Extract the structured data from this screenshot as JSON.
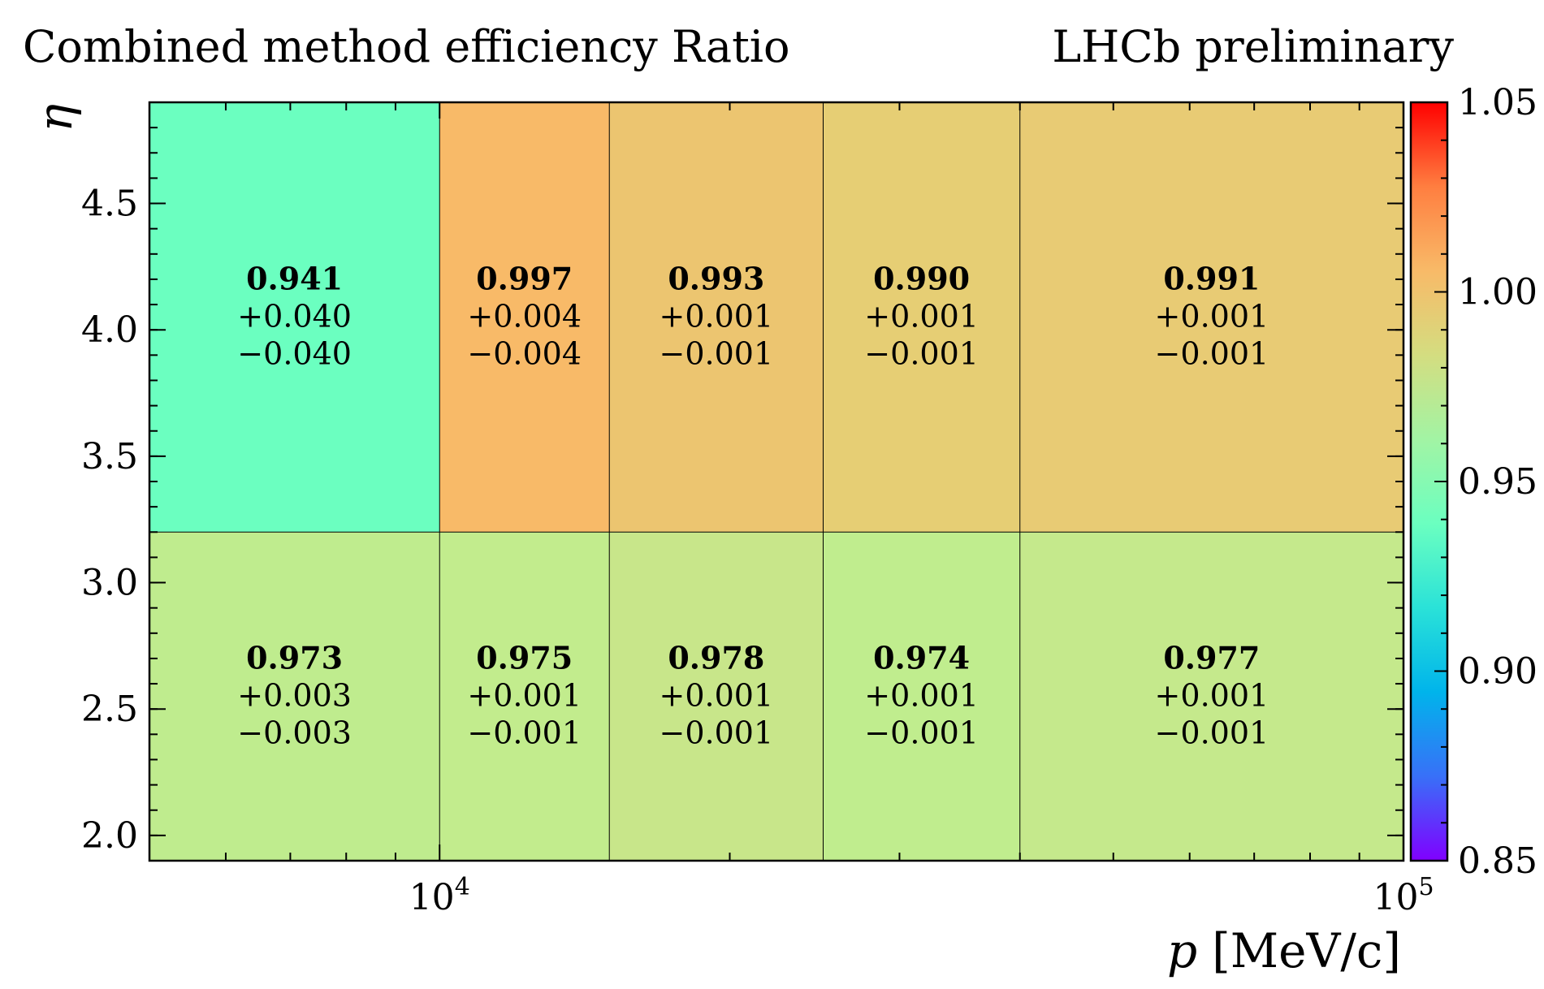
{
  "chart_data": {
    "type": "heatmap",
    "title": "Combined method efficiency Ratio",
    "experiment_label": "LHCb preliminary",
    "xlabel_symbol": "p",
    "xlabel_unit": "[MeV/c]",
    "ylabel_symbol": "η",
    "x_scale": "log",
    "xlim": [
      5000,
      100000
    ],
    "ylim": [
      1.9,
      4.9
    ],
    "x_bin_edges": [
      5000,
      10000,
      15000,
      25000,
      40000,
      100000
    ],
    "y_bin_edges": [
      1.9,
      3.2,
      4.9
    ],
    "x_ticks": [
      {
        "value": 10000,
        "base": "10",
        "exp": "4"
      },
      {
        "value": 100000,
        "base": "10",
        "exp": "5"
      }
    ],
    "y_ticks": [
      {
        "value": 2.0,
        "label": "2.0"
      },
      {
        "value": 2.5,
        "label": "2.5"
      },
      {
        "value": 3.0,
        "label": "3.0"
      },
      {
        "value": 3.5,
        "label": "3.5"
      },
      {
        "value": 4.0,
        "label": "4.0"
      },
      {
        "value": 4.5,
        "label": "4.5"
      }
    ],
    "cells": [
      {
        "ix": 0,
        "iy": 1,
        "value": "0.941",
        "err_up": "+0.040",
        "err_down": "−0.040",
        "color": "#6bffc0"
      },
      {
        "ix": 1,
        "iy": 1,
        "value": "0.997",
        "err_up": "+0.004",
        "err_down": "−0.004",
        "color": "#f8ba68"
      },
      {
        "ix": 2,
        "iy": 1,
        "value": "0.993",
        "err_up": "+0.001",
        "err_down": "−0.001",
        "color": "#ecc570"
      },
      {
        "ix": 3,
        "iy": 1,
        "value": "0.990",
        "err_up": "+0.001",
        "err_down": "−0.001",
        "color": "#e6ce74"
      },
      {
        "ix": 4,
        "iy": 1,
        "value": "0.991",
        "err_up": "+0.001",
        "err_down": "−0.001",
        "color": "#e8cb74"
      },
      {
        "ix": 0,
        "iy": 0,
        "value": "0.973",
        "err_up": "+0.003",
        "err_down": "−0.003",
        "color": "#bfec8e"
      },
      {
        "ix": 1,
        "iy": 0,
        "value": "0.975",
        "err_up": "+0.001",
        "err_down": "−0.001",
        "color": "#c2ec8d"
      },
      {
        "ix": 2,
        "iy": 0,
        "value": "0.978",
        "err_up": "+0.001",
        "err_down": "−0.001",
        "color": "#c8e68a"
      },
      {
        "ix": 3,
        "iy": 0,
        "value": "0.974",
        "err_up": "+0.001",
        "err_down": "−0.001",
        "color": "#c0ed8e"
      },
      {
        "ix": 4,
        "iy": 0,
        "value": "0.977",
        "err_up": "+0.001",
        "err_down": "−0.001",
        "color": "#c5e98c"
      }
    ],
    "colorbar": {
      "range": [
        0.85,
        1.05
      ],
      "ticks": [
        {
          "value": 0.85,
          "label": "0.85"
        },
        {
          "value": 0.9,
          "label": "0.90"
        },
        {
          "value": 0.95,
          "label": "0.95"
        },
        {
          "value": 1.0,
          "label": "1.00"
        },
        {
          "value": 1.05,
          "label": "1.05"
        }
      ],
      "colormap": "rainbow",
      "stops": [
        "#8000ff",
        "#3870f8",
        "#00b4eb",
        "#2ae2d8",
        "#6bffc0",
        "#a2f4a4",
        "#d4dd80",
        "#f8ba68",
        "#ff7e40",
        "#ff0000"
      ]
    }
  }
}
